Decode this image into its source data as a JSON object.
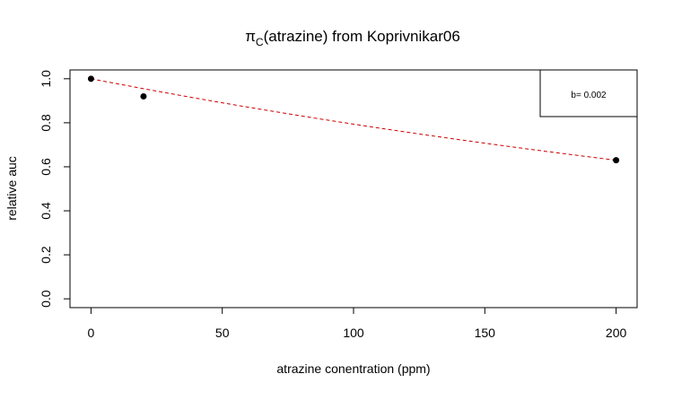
{
  "chart_data": {
    "type": "scatter",
    "title": {
      "symbol": "π",
      "subscript": "C",
      "text": "(atrazine) from Koprivnikar06"
    },
    "xlabel": "atrazine conentration (ppm)",
    "ylabel": "relative auc",
    "xlim": [
      -8,
      208
    ],
    "ylim": [
      -0.04,
      1.04
    ],
    "xticks": [
      0,
      50,
      100,
      150,
      200
    ],
    "yticks": [
      0.0,
      0.2,
      0.4,
      0.6,
      0.8,
      1.0
    ],
    "xtick_labels": [
      "0",
      "50",
      "100",
      "150",
      "200"
    ],
    "ytick_labels": [
      "0.0",
      "0.2",
      "0.4",
      "0.6",
      "0.8",
      "1.0"
    ],
    "grid": false,
    "legend_position": "top-right",
    "legend_text": "b=  0.002",
    "series": [
      {
        "kind": "points",
        "x": [
          0,
          20,
          200
        ],
        "y": [
          1.0,
          0.92,
          0.63
        ],
        "color": "#000000"
      },
      {
        "kind": "fit",
        "model": "exponential decay",
        "x_range": [
          0,
          200
        ],
        "y_start": 1.0,
        "y_end": 0.63,
        "style": "dashed",
        "color": "#cc0000"
      }
    ]
  }
}
